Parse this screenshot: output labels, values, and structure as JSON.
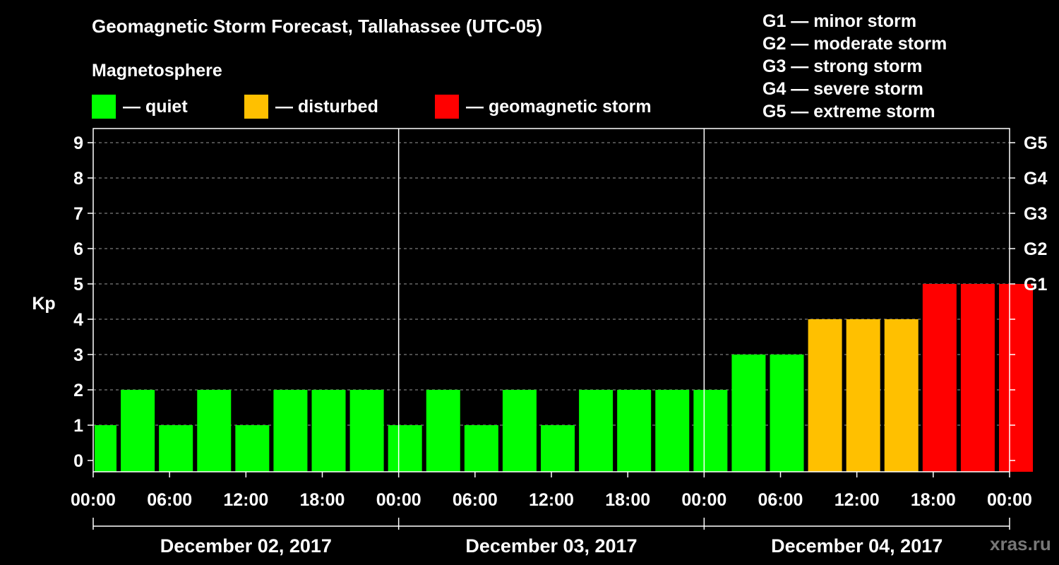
{
  "header": {
    "title": "Geomagnetic Storm Forecast, Tallahassee (UTC-05)",
    "subtitle": "Magnetosphere"
  },
  "legend": [
    {
      "label": "— quiet",
      "color": "#00ff00"
    },
    {
      "label": "— disturbed",
      "color": "#ffc000"
    },
    {
      "label": "— geomagnetic storm",
      "color": "#ff0000"
    }
  ],
  "gscale": [
    "G1 — minor storm",
    "G2 — moderate storm",
    "G3 — strong storm",
    "G4 — severe storm",
    "G5 — extreme storm"
  ],
  "watermark": "xras.ru",
  "chart_data": {
    "type": "bar",
    "title": "Geomagnetic Storm Forecast, Tallahassee (UTC-05)",
    "ylabel": "Kp",
    "ylim": [
      0,
      9
    ],
    "yticks": [
      "0",
      "1",
      "2",
      "3",
      "4",
      "5",
      "6",
      "7",
      "8",
      "9"
    ],
    "right_ticks": [
      {
        "kp": 5,
        "label": "G1"
      },
      {
        "kp": 6,
        "label": "G2"
      },
      {
        "kp": 7,
        "label": "G3"
      },
      {
        "kp": 8,
        "label": "G4"
      },
      {
        "kp": 9,
        "label": "G5"
      }
    ],
    "x_tick_labels": [
      "00:00",
      "06:00",
      "12:00",
      "18:00",
      "00:00",
      "06:00",
      "12:00",
      "18:00",
      "00:00",
      "06:00",
      "12:00",
      "18:00",
      "00:00"
    ],
    "xlim_hours": [
      0,
      72
    ],
    "days": [
      "December 02, 2017",
      "December 03, 2017",
      "December 04, 2017"
    ],
    "start_hour": 0.5,
    "interval_hours": 3,
    "values": [
      1,
      2,
      1,
      2,
      1,
      2,
      2,
      2,
      1,
      2,
      1,
      2,
      1,
      2,
      2,
      2,
      2,
      3,
      3,
      4,
      4,
      4,
      5,
      5,
      5
    ],
    "categories": [
      "quiet",
      "quiet",
      "quiet",
      "quiet",
      "quiet",
      "quiet",
      "quiet",
      "quiet",
      "quiet",
      "quiet",
      "quiet",
      "quiet",
      "quiet",
      "quiet",
      "quiet",
      "quiet",
      "quiet",
      "quiet",
      "quiet",
      "disturbed",
      "disturbed",
      "disturbed",
      "storm",
      "storm",
      "storm"
    ],
    "colors": {
      "quiet": "#00ff00",
      "disturbed": "#ffc000",
      "storm": "#ff0000"
    }
  }
}
